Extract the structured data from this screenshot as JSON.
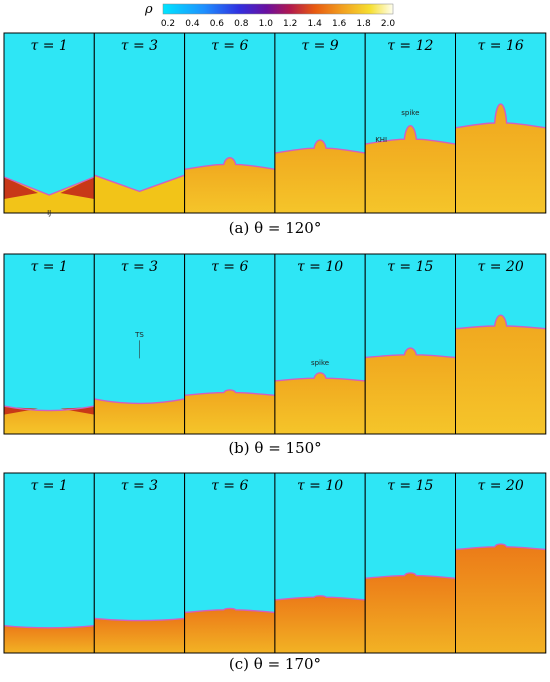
{
  "colorbar": {
    "symbol": "ρ",
    "ticks": [
      "0.2",
      "0.4",
      "0.6",
      "0.8",
      "1.0",
      "1.2",
      "1.4",
      "1.6",
      "1.8",
      "2.0"
    ]
  },
  "rows": [
    {
      "caption": "(a) θ = 120°",
      "panels": [
        {
          "label": "τ = 1",
          "front": 0.9,
          "bump": 0.0
        },
        {
          "label": "τ = 3",
          "front": 0.88,
          "bump": 0.0
        },
        {
          "label": "τ = 6",
          "front": 0.73,
          "bump": 0.05
        },
        {
          "label": "τ = 9",
          "front": 0.64,
          "bump": 0.06
        },
        {
          "label": "τ = 12",
          "front": 0.59,
          "bump": 0.1
        },
        {
          "label": "τ = 16",
          "front": 0.5,
          "bump": 0.14
        }
      ]
    },
    {
      "caption": "(b) θ = 150°",
      "panels": [
        {
          "label": "τ = 1",
          "front": 0.87,
          "bump": 0.0
        },
        {
          "label": "τ = 3",
          "front": 0.83,
          "bump": 0.0
        },
        {
          "label": "τ = 6",
          "front": 0.77,
          "bump": 0.02
        },
        {
          "label": "τ = 10",
          "front": 0.69,
          "bump": 0.04
        },
        {
          "label": "τ = 15",
          "front": 0.56,
          "bump": 0.05
        },
        {
          "label": "τ = 20",
          "front": 0.4,
          "bump": 0.08
        }
      ]
    },
    {
      "caption": "(c) θ = 170°",
      "panels": [
        {
          "label": "τ = 1",
          "front": 0.86,
          "bump": 0.0
        },
        {
          "label": "τ = 3",
          "front": 0.82,
          "bump": 0.0
        },
        {
          "label": "τ = 6",
          "front": 0.76,
          "bump": 0.01
        },
        {
          "label": "τ = 10",
          "front": 0.69,
          "bump": 0.01
        },
        {
          "label": "τ = 15",
          "front": 0.57,
          "bump": 0.02
        },
        {
          "label": "τ = 20",
          "front": 0.41,
          "bump": 0.02
        }
      ]
    }
  ],
  "annotations": {
    "a": [
      "IJ",
      "",
      "",
      "",
      "spike",
      ""
    ],
    "a_extra": [
      "",
      "",
      "",
      "",
      "KHI",
      ""
    ],
    "b": [
      "",
      "TS",
      "",
      "spike",
      "",
      ""
    ]
  },
  "colors": {
    "light_gas": "#2ee6f5",
    "heavy_gas": "#f2c418",
    "shocked_gas": "#f0a020",
    "interface": "#d060c0",
    "dense_shock": "#c83818"
  }
}
